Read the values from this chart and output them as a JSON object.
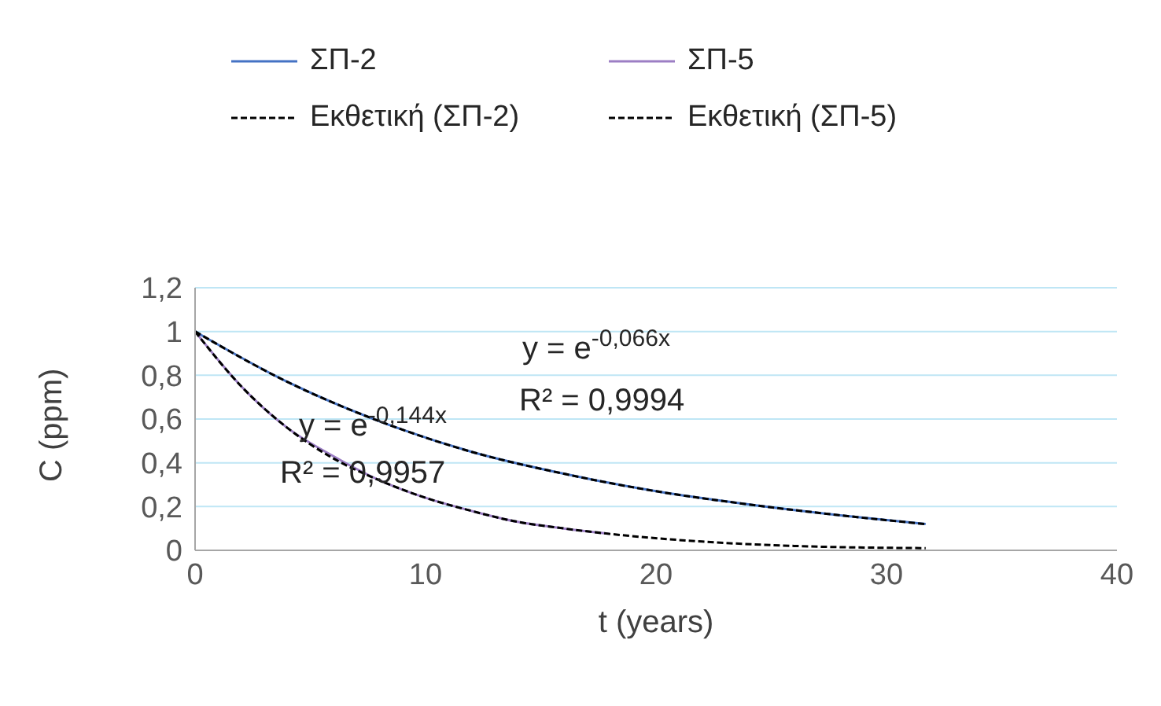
{
  "chart_data": {
    "type": "line",
    "xlabel": "t (years)",
    "ylabel": "C (ppm)",
    "xlim": [
      0,
      40
    ],
    "xticks": [
      0,
      10,
      20,
      30,
      40
    ],
    "ylim": [
      0,
      1.2
    ],
    "yticks": [
      0,
      {
        "value": 0.2,
        "label": "0,2"
      },
      {
        "value": 0.4,
        "label": "0,4"
      },
      {
        "value": 0.6,
        "label": "0,6"
      },
      {
        "value": 0.8,
        "label": "0,8"
      },
      1,
      {
        "value": 1.2,
        "label": "1,2"
      }
    ],
    "grid": "y",
    "legend": "top",
    "marker": "none",
    "series": [
      {
        "name": "ΣΠ-2",
        "color": "#4472c4",
        "line_style": "solid",
        "x": [
          0,
          4,
          8,
          12,
          16,
          20,
          24,
          28,
          31.7
        ],
        "values": [
          1,
          0.77,
          0.59,
          0.45,
          0.35,
          0.27,
          0.21,
          0.16,
          0.12
        ]
      },
      {
        "name": "ΣΠ-5",
        "color": "#9c7ec4",
        "line_style": "solid",
        "x": [
          0,
          2,
          4,
          6,
          8,
          10,
          12,
          14,
          16,
          18
        ],
        "values": [
          1,
          0.75,
          0.56,
          0.43,
          0.32,
          0.24,
          0.18,
          0.13,
          0.1,
          0.075
        ]
      },
      {
        "name": "Εκθετική (ΣΠ-2)",
        "color": "#000000",
        "line_style": "dashed",
        "x": [
          0,
          4,
          8,
          12,
          16,
          20,
          24,
          28,
          31.7
        ],
        "values": [
          1,
          0.77,
          0.59,
          0.45,
          0.35,
          0.27,
          0.21,
          0.16,
          0.12
        ]
      },
      {
        "name": "Εκθετική (ΣΠ-5)",
        "color": "#000000",
        "line_style": "dashed",
        "x": [
          0,
          2,
          4,
          6,
          8,
          10,
          12,
          14,
          16,
          18,
          22,
          26,
          31.7
        ],
        "values": [
          1,
          0.75,
          0.56,
          0.42,
          0.32,
          0.24,
          0.18,
          0.13,
          0.1,
          0.075,
          0.04,
          0.02,
          0.01
        ]
      }
    ],
    "annotations": [
      "y = e$^{-0,066x}$",
      "R² = 0,9994",
      "y = e$^{-0,144x}$",
      "R² = 0,9957"
    ]
  }
}
